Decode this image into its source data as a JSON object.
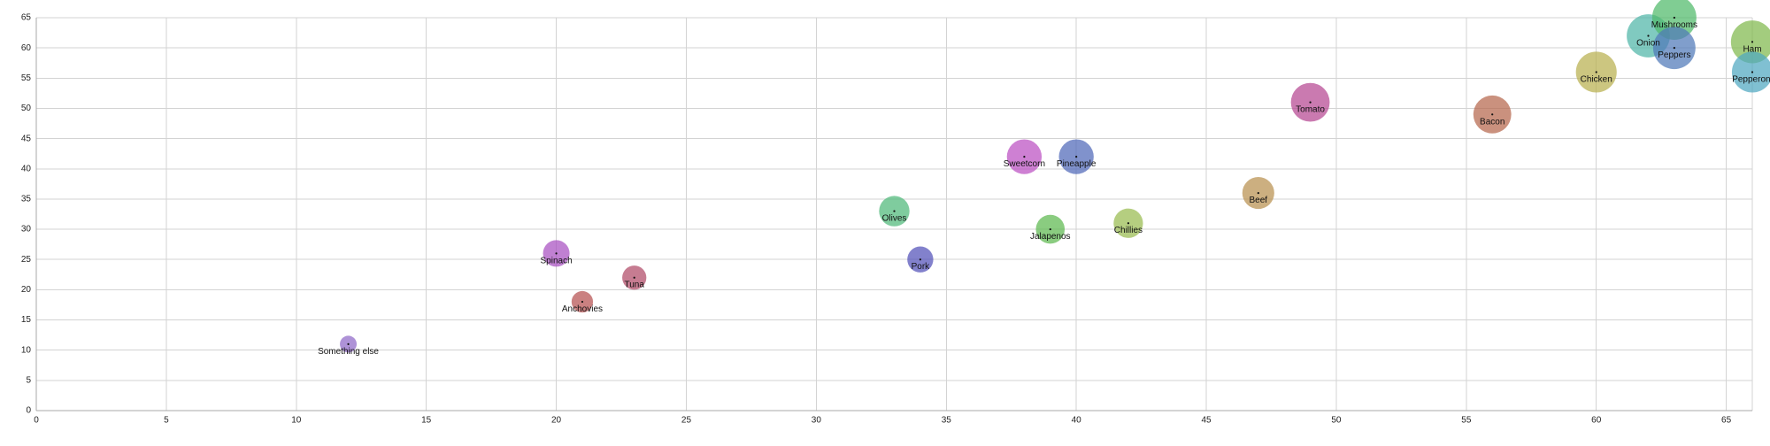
{
  "chart_data": {
    "type": "scatter",
    "title": "",
    "xlabel": "",
    "ylabel": "",
    "xlim": [
      0,
      66
    ],
    "ylim": [
      0,
      65
    ],
    "x_ticks": [
      0,
      5,
      10,
      15,
      20,
      25,
      30,
      35,
      40,
      45,
      50,
      55,
      60,
      65
    ],
    "y_ticks": [
      0,
      5,
      10,
      15,
      20,
      25,
      30,
      35,
      40,
      45,
      50,
      55,
      60,
      65
    ],
    "grid": true,
    "legend": "none",
    "points": [
      {
        "label": "Something else",
        "x": 12,
        "y": 11,
        "size": 12,
        "color": "#8f68c8"
      },
      {
        "label": "Spinach",
        "x": 20,
        "y": 26,
        "size": 26,
        "color": "#a84fc0"
      },
      {
        "label": "Anchovies",
        "x": 21,
        "y": 18,
        "size": 18,
        "color": "#b65050"
      },
      {
        "label": "Tuna",
        "x": 23,
        "y": 22,
        "size": 22,
        "color": "#b04a66"
      },
      {
        "label": "Olives",
        "x": 33,
        "y": 33,
        "size": 33,
        "color": "#4db878"
      },
      {
        "label": "Pork",
        "x": 34,
        "y": 25,
        "size": 25,
        "color": "#5250b8"
      },
      {
        "label": "Sweetcorn",
        "x": 38,
        "y": 42,
        "size": 42,
        "color": "#bb4fc2"
      },
      {
        "label": "Jalapenos",
        "x": 39,
        "y": 30,
        "size": 30,
        "color": "#5db94f"
      },
      {
        "label": "Pineapple",
        "x": 40,
        "y": 42,
        "size": 42,
        "color": "#4f68b8"
      },
      {
        "label": "Chillies",
        "x": 42,
        "y": 31,
        "size": 31,
        "color": "#99bb4f"
      },
      {
        "label": "Beef",
        "x": 47,
        "y": 36,
        "size": 36,
        "color": "#b8904f"
      },
      {
        "label": "Tomato",
        "x": 49,
        "y": 51,
        "size": 51,
        "color": "#b54792"
      },
      {
        "label": "Bacon",
        "x": 56,
        "y": 49,
        "size": 49,
        "color": "#b5674c"
      },
      {
        "label": "Chicken",
        "x": 60,
        "y": 56,
        "size": 56,
        "color": "#b8b04f"
      },
      {
        "label": "Onion",
        "x": 62,
        "y": 62,
        "size": 62,
        "color": "#4fb5a8"
      },
      {
        "label": "Mushrooms",
        "x": 63,
        "y": 65,
        "size": 65,
        "color": "#4fba6a"
      },
      {
        "label": "Peppers",
        "x": 63,
        "y": 60,
        "size": 60,
        "color": "#4f78b8"
      },
      {
        "label": "Ham",
        "x": 66,
        "y": 61,
        "size": 61,
        "color": "#7fb94c"
      },
      {
        "label": "Pepperoni",
        "x": 66,
        "y": 56,
        "size": 56,
        "color": "#4fa8c0"
      }
    ]
  }
}
